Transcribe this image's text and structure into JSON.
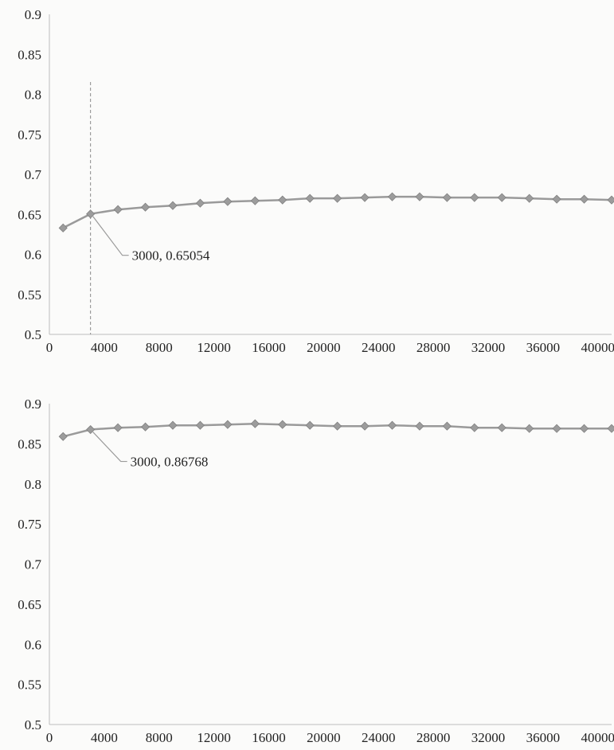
{
  "chart_data": [
    {
      "type": "line",
      "x": [
        1000,
        3000,
        5000,
        7000,
        9000,
        11000,
        13000,
        15000,
        17000,
        19000,
        21000,
        23000,
        25000,
        27000,
        29000,
        31000,
        33000,
        35000,
        37000,
        39000,
        41000
      ],
      "series": [
        {
          "values": [
            0.633,
            0.6505,
            0.656,
            0.659,
            0.661,
            0.664,
            0.666,
            0.667,
            0.668,
            0.67,
            0.67,
            0.671,
            0.672,
            0.672,
            0.671,
            0.671,
            0.671,
            0.67,
            0.669,
            0.669,
            0.668
          ]
        }
      ],
      "xlim": [
        0,
        41000
      ],
      "ylim": [
        0.5,
        0.9
      ],
      "x_ticks": [
        "0",
        "4000",
        "8000",
        "12000",
        "16000",
        "20000",
        "24000",
        "28000",
        "32000",
        "36000",
        "40000"
      ],
      "y_ticks": [
        "0.5",
        "0.55",
        "0.6",
        "0.65",
        "0.7",
        "0.75",
        "0.8",
        "0.85",
        "0.9"
      ],
      "annotation": {
        "x": 3000,
        "y": 0.65054,
        "text": "3000, 0.65054"
      },
      "vertical_marker_x": 3000,
      "title": "",
      "xlabel": "",
      "ylabel": "",
      "grid": false,
      "color": "#9a9a9a"
    },
    {
      "type": "line",
      "x": [
        1000,
        3000,
        5000,
        7000,
        9000,
        11000,
        13000,
        15000,
        17000,
        19000,
        21000,
        23000,
        25000,
        27000,
        29000,
        31000,
        33000,
        35000,
        37000,
        39000,
        41000
      ],
      "series": [
        {
          "values": [
            0.859,
            0.8677,
            0.87,
            0.871,
            0.873,
            0.873,
            0.874,
            0.875,
            0.874,
            0.873,
            0.872,
            0.872,
            0.873,
            0.872,
            0.872,
            0.87,
            0.87,
            0.869,
            0.869,
            0.869,
            0.869
          ]
        }
      ],
      "xlim": [
        0,
        41000
      ],
      "ylim": [
        0.5,
        0.9
      ],
      "x_ticks": [
        "0",
        "4000",
        "8000",
        "12000",
        "16000",
        "20000",
        "24000",
        "28000",
        "32000",
        "36000",
        "40000"
      ],
      "y_ticks": [
        "0.5",
        "0.55",
        "0.6",
        "0.65",
        "0.7",
        "0.75",
        "0.8",
        "0.85",
        "0.9"
      ],
      "annotation": {
        "x": 3000,
        "y": 0.86768,
        "text": "3000, 0.86768"
      },
      "title": "",
      "xlabel": "",
      "ylabel": "",
      "grid": false,
      "color": "#9a9a9a"
    }
  ]
}
